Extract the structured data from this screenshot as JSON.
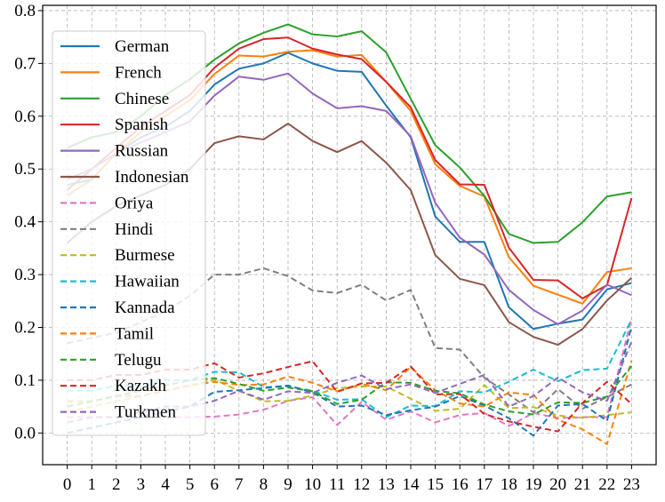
{
  "chart_data": {
    "type": "line",
    "title": "",
    "xlabel": "",
    "ylabel": "",
    "x": [
      0,
      1,
      2,
      3,
      4,
      5,
      6,
      7,
      8,
      9,
      10,
      11,
      12,
      13,
      14,
      15,
      16,
      17,
      18,
      19,
      20,
      21,
      22,
      23
    ],
    "xlim": [
      -1,
      24
    ],
    "ylim": [
      -0.06,
      0.81
    ],
    "yticks": [
      0.0,
      0.1,
      0.2,
      0.3,
      0.4,
      0.5,
      0.6,
      0.7,
      0.8
    ],
    "ytick_labels": [
      "0.0",
      "0.1",
      "0.2",
      "0.3",
      "0.4",
      "0.5",
      "0.6",
      "0.7",
      "0.8"
    ],
    "xtick_labels": [
      "0",
      "1",
      "2",
      "3",
      "4",
      "5",
      "6",
      "7",
      "8",
      "9",
      "10",
      "11",
      "12",
      "13",
      "14",
      "15",
      "16",
      "17",
      "18",
      "19",
      "20",
      "21",
      "22",
      "23"
    ],
    "grid": true,
    "legend_position": "upper-left",
    "series": [
      {
        "name": "German",
        "color": "#1f77b4",
        "dash": "solid",
        "values": [
          0.47,
          0.48,
          0.53,
          0.56,
          0.58,
          0.61,
          0.66,
          0.69,
          0.7,
          0.72,
          0.7,
          0.686,
          0.684,
          0.62,
          0.56,
          0.41,
          0.362,
          0.362,
          0.238,
          0.197,
          0.207,
          0.215,
          0.272,
          0.284
        ]
      },
      {
        "name": "French",
        "color": "#ff7f0e",
        "dash": "solid",
        "values": [
          0.45,
          0.48,
          0.53,
          0.57,
          0.6,
          0.63,
          0.68,
          0.715,
          0.713,
          0.722,
          0.725,
          0.713,
          0.716,
          0.665,
          0.61,
          0.509,
          0.468,
          0.448,
          0.333,
          0.279,
          0.262,
          0.245,
          0.305,
          0.312
        ]
      },
      {
        "name": "Chinese",
        "color": "#2ca02c",
        "dash": "solid",
        "values": [
          0.54,
          0.56,
          0.57,
          0.6,
          0.64,
          0.67,
          0.707,
          0.738,
          0.758,
          0.774,
          0.755,
          0.751,
          0.761,
          0.721,
          0.633,
          0.545,
          0.503,
          0.449,
          0.377,
          0.36,
          0.362,
          0.399,
          0.448,
          0.456
        ]
      },
      {
        "name": "Spanish",
        "color": "#d62728",
        "dash": "solid",
        "values": [
          0.46,
          0.5,
          0.54,
          0.58,
          0.61,
          0.64,
          0.692,
          0.728,
          0.746,
          0.749,
          0.728,
          0.717,
          0.708,
          0.665,
          0.617,
          0.517,
          0.471,
          0.47,
          0.351,
          0.29,
          0.289,
          0.255,
          0.28,
          0.445
        ]
      },
      {
        "name": "Russian",
        "color": "#9467bd",
        "dash": "solid",
        "values": [
          0.48,
          0.5,
          0.53,
          0.55,
          0.57,
          0.59,
          0.639,
          0.675,
          0.669,
          0.681,
          0.643,
          0.615,
          0.619,
          0.61,
          0.562,
          0.436,
          0.37,
          0.338,
          0.271,
          0.233,
          0.206,
          0.232,
          0.281,
          0.261
        ]
      },
      {
        "name": "Indonesian",
        "color": "#8c564b",
        "dash": "solid",
        "values": [
          0.36,
          0.4,
          0.43,
          0.45,
          0.47,
          0.5,
          0.549,
          0.562,
          0.556,
          0.586,
          0.553,
          0.532,
          0.553,
          0.512,
          0.46,
          0.337,
          0.292,
          0.28,
          0.21,
          0.182,
          0.167,
          0.197,
          0.251,
          0.294
        ]
      },
      {
        "name": "Oriya",
        "color": "#e377c2",
        "dash": "dashed",
        "values": [
          0.03,
          0.03,
          0.03,
          0.03,
          0.03,
          0.03,
          0.031,
          0.035,
          0.044,
          0.061,
          0.068,
          0.015,
          0.059,
          0.025,
          0.041,
          0.02,
          0.034,
          0.038,
          0.013,
          0.038,
          0.028,
          0.03,
          0.03,
          0.218
        ]
      },
      {
        "name": "Hindi",
        "color": "#7f7f7f",
        "dash": "dashed",
        "values": [
          0.17,
          0.18,
          0.19,
          0.21,
          0.23,
          0.26,
          0.3,
          0.3,
          0.312,
          0.297,
          0.27,
          0.265,
          0.281,
          0.251,
          0.271,
          0.161,
          0.158,
          0.105,
          0.073,
          0.039,
          0.083,
          0.046,
          0.068,
          0.092
        ]
      },
      {
        "name": "Burmese",
        "color": "#bcbd22",
        "dash": "dashed",
        "values": [
          0.04,
          0.05,
          0.06,
          0.07,
          0.08,
          0.09,
          0.101,
          0.08,
          0.06,
          0.061,
          0.071,
          0.085,
          0.088,
          0.088,
          0.065,
          0.042,
          0.046,
          0.091,
          0.047,
          0.049,
          0.033,
          0.029,
          0.034,
          0.039
        ]
      },
      {
        "name": "Hawaiian",
        "color": "#17becf",
        "dash": "dashed",
        "values": [
          0.08,
          0.08,
          0.09,
          0.09,
          0.1,
          0.1,
          0.116,
          0.115,
          0.087,
          0.088,
          0.08,
          0.063,
          0.064,
          0.03,
          0.052,
          0.051,
          0.079,
          0.077,
          0.097,
          0.12,
          0.098,
          0.119,
          0.122,
          0.215
        ]
      },
      {
        "name": "Kannada",
        "color": "#1f77b4",
        "dash": "dashed",
        "values": [
          0.0,
          0.01,
          0.02,
          0.03,
          0.04,
          0.05,
          0.078,
          0.081,
          0.085,
          0.09,
          0.077,
          0.05,
          0.052,
          0.034,
          0.043,
          0.05,
          0.07,
          0.052,
          0.028,
          -0.005,
          0.052,
          0.055,
          0.023,
          0.202
        ]
      },
      {
        "name": "Tamil",
        "color": "#ff7f0e",
        "dash": "dashed",
        "values": [
          0.06,
          0.06,
          0.07,
          0.07,
          0.08,
          0.09,
          0.097,
          0.091,
          0.092,
          0.107,
          0.095,
          0.079,
          0.093,
          0.081,
          0.125,
          0.081,
          0.056,
          0.05,
          0.077,
          0.072,
          0.025,
          0.007,
          -0.021,
          0.137
        ]
      },
      {
        "name": "Telugu",
        "color": "#2ca02c",
        "dash": "dashed",
        "values": [
          0.05,
          0.06,
          0.07,
          0.08,
          0.09,
          0.1,
          0.104,
          0.093,
          0.08,
          0.086,
          0.079,
          0.055,
          0.063,
          0.096,
          0.095,
          0.08,
          0.075,
          0.054,
          0.041,
          0.035,
          0.058,
          0.057,
          0.069,
          0.127
        ]
      },
      {
        "name": "Kazakh",
        "color": "#d62728",
        "dash": "dashed",
        "values": [
          0.1,
          0.1,
          0.11,
          0.11,
          0.12,
          0.12,
          0.132,
          0.105,
          0.113,
          0.125,
          0.136,
          0.078,
          0.094,
          0.095,
          0.126,
          0.073,
          0.074,
          0.036,
          0.022,
          0.012,
          0.003,
          0.057,
          0.097,
          0.055
        ]
      },
      {
        "name": "Turkmen",
        "color": "#9467bd",
        "dash": "dashed",
        "values": [
          0.02,
          0.03,
          0.03,
          0.04,
          0.05,
          0.05,
          0.061,
          0.08,
          0.063,
          0.079,
          0.076,
          0.095,
          0.109,
          0.083,
          0.092,
          0.076,
          0.093,
          0.11,
          0.05,
          0.07,
          0.105,
          0.077,
          0.061,
          0.173
        ]
      }
    ]
  }
}
